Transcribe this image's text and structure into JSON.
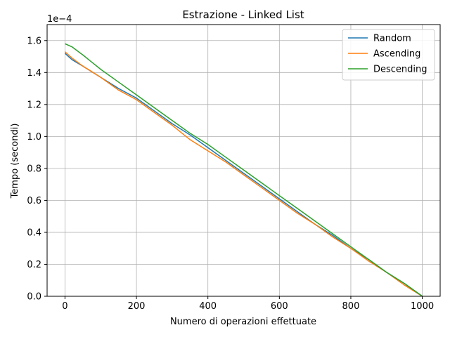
{
  "chart_data": {
    "type": "line",
    "title": "Estrazione - Linked List",
    "xlabel": "Numero di operazioni effettuate",
    "ylabel": "Tempo (secondi)",
    "y_scale_label": "1e−4",
    "xlim": [
      -50,
      1050
    ],
    "ylim": [
      0,
      1.7
    ],
    "xticks": [
      0,
      200,
      400,
      600,
      800,
      1000
    ],
    "yticks": [
      0.0,
      0.2,
      0.4,
      0.6,
      0.8,
      1.0,
      1.2,
      1.4,
      1.6
    ],
    "xtick_labels": [
      "0",
      "200",
      "400",
      "600",
      "800",
      "1000"
    ],
    "ytick_labels": [
      "0.0",
      "0.2",
      "0.4",
      "0.6",
      "0.8",
      "1.0",
      "1.2",
      "1.4",
      "1.6"
    ],
    "grid": true,
    "legend_position": "top-right",
    "series": [
      {
        "name": "Random",
        "color": "#1f77b4",
        "x": [
          0,
          10,
          20,
          50,
          100,
          150,
          200,
          250,
          300,
          350,
          400,
          450,
          500,
          550,
          600,
          650,
          700,
          750,
          800,
          850,
          900,
          950,
          1000
        ],
        "y": [
          1.52,
          1.5,
          1.48,
          1.44,
          1.37,
          1.3,
          1.24,
          1.16,
          1.08,
          1.01,
          0.93,
          0.85,
          0.77,
          0.69,
          0.61,
          0.53,
          0.45,
          0.38,
          0.3,
          0.23,
          0.15,
          0.08,
          0.0
        ]
      },
      {
        "name": "Ascending",
        "color": "#ff7f0e",
        "x": [
          0,
          10,
          20,
          50,
          100,
          150,
          200,
          250,
          300,
          350,
          400,
          450,
          500,
          550,
          600,
          650,
          700,
          750,
          800,
          850,
          900,
          950,
          1000
        ],
        "y": [
          1.53,
          1.51,
          1.49,
          1.44,
          1.37,
          1.29,
          1.23,
          1.15,
          1.07,
          0.98,
          0.91,
          0.84,
          0.76,
          0.68,
          0.6,
          0.52,
          0.45,
          0.37,
          0.3,
          0.22,
          0.15,
          0.07,
          0.0
        ]
      },
      {
        "name": "Descending",
        "color": "#2ca02c",
        "x": [
          0,
          10,
          20,
          50,
          100,
          150,
          200,
          250,
          300,
          350,
          400,
          450,
          500,
          550,
          600,
          650,
          700,
          750,
          800,
          850,
          900,
          950,
          1000
        ],
        "y": [
          1.58,
          1.57,
          1.56,
          1.51,
          1.42,
          1.34,
          1.26,
          1.18,
          1.1,
          1.02,
          0.95,
          0.87,
          0.79,
          0.71,
          0.63,
          0.55,
          0.47,
          0.39,
          0.31,
          0.23,
          0.15,
          0.08,
          0.0
        ]
      }
    ]
  }
}
